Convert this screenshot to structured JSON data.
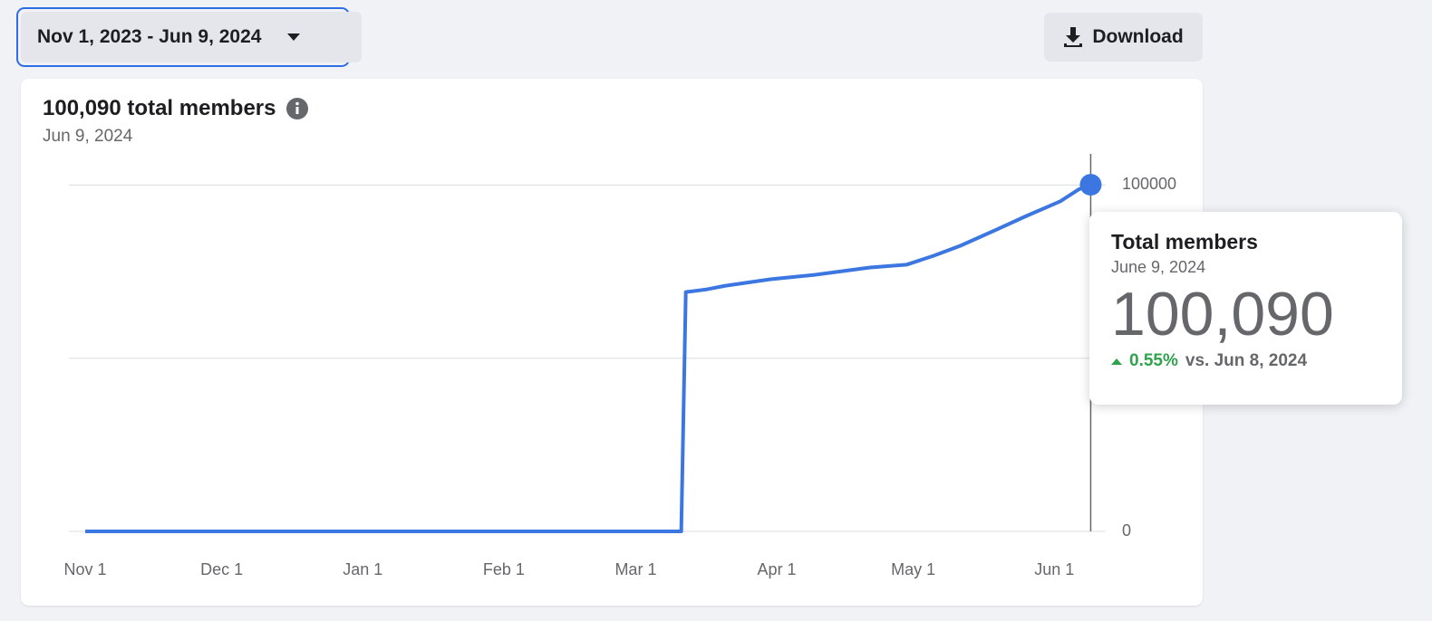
{
  "date_range": "Nov 1, 2023 - Jun 9, 2024",
  "download": "Download",
  "chart_data": {
    "type": "line",
    "title": "100,090 total members",
    "subtitle": "Jun 9, 2024",
    "x": [
      0,
      131,
      132,
      136.7,
      140.6,
      150.6,
      160.5,
      172.5,
      180.5,
      186.5,
      192.4,
      200.4,
      206.4,
      214.3,
      218.3,
      221
    ],
    "values": [
      0,
      0,
      69100,
      69900,
      70900,
      72800,
      74100,
      76200,
      77000,
      79600,
      82500,
      87200,
      90800,
      95300,
      98700,
      100090
    ],
    "color": "#3b76e1",
    "xlim": [
      -3.6,
      224.3
    ],
    "xticks": [
      {
        "value": 0,
        "label": "Nov 1"
      },
      {
        "value": 30,
        "label": "Dec 1"
      },
      {
        "value": 61,
        "label": "Jan 1"
      },
      {
        "value": 92,
        "label": "Feb 1"
      },
      {
        "value": 121,
        "label": "Mar 1"
      },
      {
        "value": 152,
        "label": "Apr 1"
      },
      {
        "value": 182,
        "label": "May 1"
      },
      {
        "value": 213,
        "label": "Jun 1"
      }
    ],
    "ylim": [
      0,
      109000
    ],
    "yticks": [
      0,
      100000
    ],
    "grid": true
  },
  "tooltip": {
    "title": "Total members",
    "date": "June 9, 2024",
    "value": "100,090",
    "change": "0.55%",
    "compare": "vs. Jun 8, 2024"
  }
}
